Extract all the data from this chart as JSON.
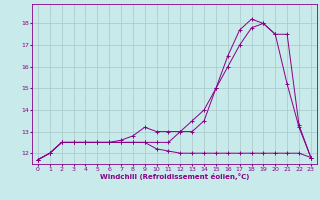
{
  "xlabel": "Windchill (Refroidissement éolien,°C)",
  "bg_color": "#c8eaea",
  "line_color": "#880088",
  "grid_color": "#a8c8c8",
  "xlim": [
    -0.5,
    23.5
  ],
  "ylim": [
    11.5,
    18.9
  ],
  "yticks": [
    12,
    13,
    14,
    15,
    16,
    17,
    18
  ],
  "xticks": [
    0,
    1,
    2,
    3,
    4,
    5,
    6,
    7,
    8,
    9,
    10,
    11,
    12,
    13,
    14,
    15,
    16,
    17,
    18,
    19,
    20,
    21,
    22,
    23
  ],
  "line1_x": [
    0,
    1,
    2,
    3,
    4,
    5,
    6,
    7,
    8,
    9,
    10,
    11,
    12,
    13,
    14,
    15,
    16,
    17,
    18,
    19,
    20,
    21,
    22,
    23
  ],
  "line1_y": [
    11.7,
    12.0,
    12.5,
    12.5,
    12.5,
    12.5,
    12.5,
    12.5,
    12.5,
    12.5,
    12.2,
    12.1,
    12.0,
    12.0,
    12.0,
    12.0,
    12.0,
    12.0,
    12.0,
    12.0,
    12.0,
    12.0,
    12.0,
    11.8
  ],
  "line2_x": [
    0,
    1,
    2,
    3,
    4,
    5,
    6,
    7,
    8,
    9,
    10,
    11,
    12,
    13,
    14,
    15,
    16,
    17,
    18,
    19,
    20,
    21,
    22,
    23
  ],
  "line2_y": [
    11.7,
    12.0,
    12.5,
    12.5,
    12.5,
    12.5,
    12.5,
    12.6,
    12.8,
    13.2,
    13.0,
    13.0,
    13.0,
    13.0,
    13.5,
    15.0,
    16.5,
    17.7,
    18.2,
    18.0,
    17.5,
    15.2,
    13.2,
    11.8
  ],
  "line3_x": [
    0,
    1,
    2,
    3,
    4,
    5,
    6,
    7,
    8,
    9,
    10,
    11,
    12,
    13,
    14,
    15,
    16,
    17,
    18,
    19,
    20,
    21,
    22,
    23
  ],
  "line3_y": [
    11.7,
    12.0,
    12.5,
    12.5,
    12.5,
    12.5,
    12.5,
    12.5,
    12.5,
    12.5,
    12.5,
    12.5,
    13.0,
    13.5,
    14.0,
    15.0,
    16.0,
    17.0,
    17.8,
    18.0,
    17.5,
    17.5,
    13.3,
    11.8
  ]
}
